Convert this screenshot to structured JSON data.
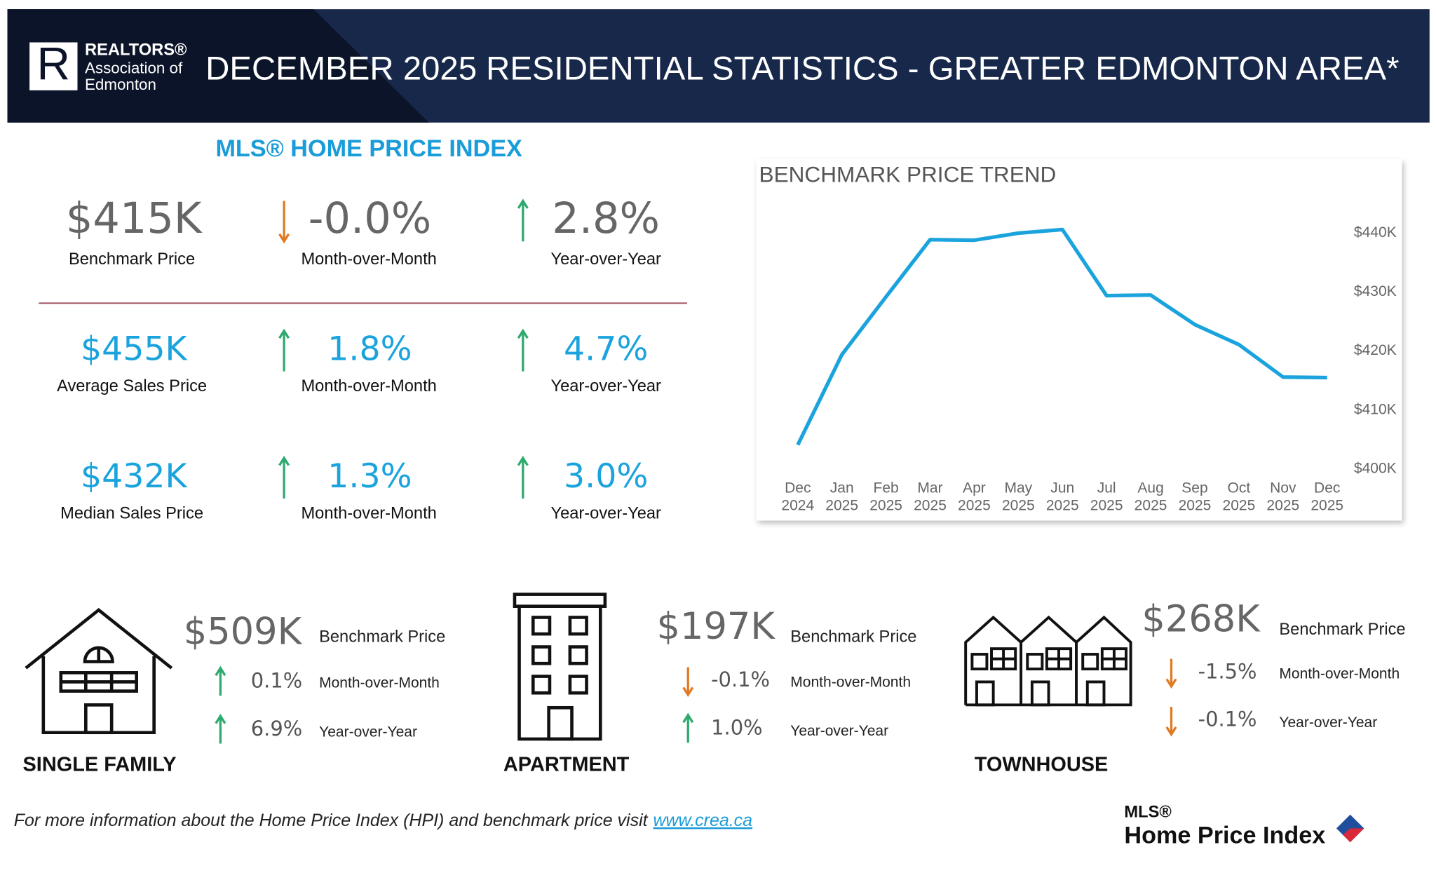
{
  "header": {
    "brand": "REALTORS®",
    "org_line1": "Association of",
    "org_line2": "Edmonton",
    "title": "DECEMBER 2025 RESIDENTIAL STATISTICS - GREATER EDMONTON AREA*"
  },
  "hpi": {
    "title": "MLS® HOME PRICE INDEX",
    "rows": [
      {
        "value": "$415K",
        "label": "Benchmark Price",
        "mom": "-0.0%",
        "mom_label": "Month-over-Month",
        "yoy": "2.8%",
        "yoy_label": "Year-over-Year"
      },
      {
        "value": "$455K",
        "label": "Average Sales Price",
        "mom": "1.8%",
        "mom_label": "Month-over-Month",
        "yoy": "4.7%",
        "yoy_label": "Year-over-Year"
      },
      {
        "value": "$432K",
        "label": "Median Sales Price",
        "mom": "1.3%",
        "mom_label": "Month-over-Month",
        "yoy": "3.0%",
        "yoy_label": "Year-over-Year"
      }
    ]
  },
  "chart_data": {
    "type": "line",
    "title": "BENCHMARK PRICE TREND",
    "categories": [
      "Dec 2024",
      "Jan 2025",
      "Feb 2025",
      "Mar 2025",
      "Apr 2025",
      "May 2025",
      "Jun 2025",
      "Jul 2025",
      "Aug 2025",
      "Sep 2025",
      "Oct 2025",
      "Nov 2025",
      "Dec 2025"
    ],
    "values": [
      404100,
      419400,
      429200,
      438900,
      438800,
      440000,
      440600,
      429400,
      429500,
      424500,
      421100,
      415600,
      415500
    ],
    "color": "#1aa3dc",
    "ylim": [
      399000,
      445000
    ],
    "yticks": [
      {
        "value": 400000,
        "label": "$400K"
      },
      {
        "value": 410000,
        "label": "$410K"
      },
      {
        "value": 420000,
        "label": "$420K"
      },
      {
        "value": 430000,
        "label": "$430K"
      },
      {
        "value": 440000,
        "label": "$440K"
      }
    ],
    "grid": false
  },
  "property_types": [
    {
      "name": "SINGLE FAMILY",
      "price": "$509K",
      "price_label": "Benchmark Price",
      "mom": "0.1%",
      "mom_label": "Month-over-Month",
      "yoy": "6.9%",
      "yoy_label": "Year-over-Year"
    },
    {
      "name": "APARTMENT",
      "price": "$197K",
      "price_label": "Benchmark Price",
      "mom": "-0.1%",
      "mom_label": "Month-over-Month",
      "yoy": "1.0%",
      "yoy_label": "Year-over-Year"
    },
    {
      "name": "TOWNHOUSE",
      "price": "$268K",
      "price_label": "Benchmark Price",
      "mom": "-1.5%",
      "mom_label": "Month-over-Month",
      "yoy": "-0.1%",
      "yoy_label": "Year-over-Year"
    }
  ],
  "footer": {
    "text": "For more information about the Home Price Index (HPI) and benchmark price visit",
    "link": "www.crea.ca"
  },
  "footer_logo": {
    "line1": "MLS®",
    "line2": "Home Price Index"
  }
}
